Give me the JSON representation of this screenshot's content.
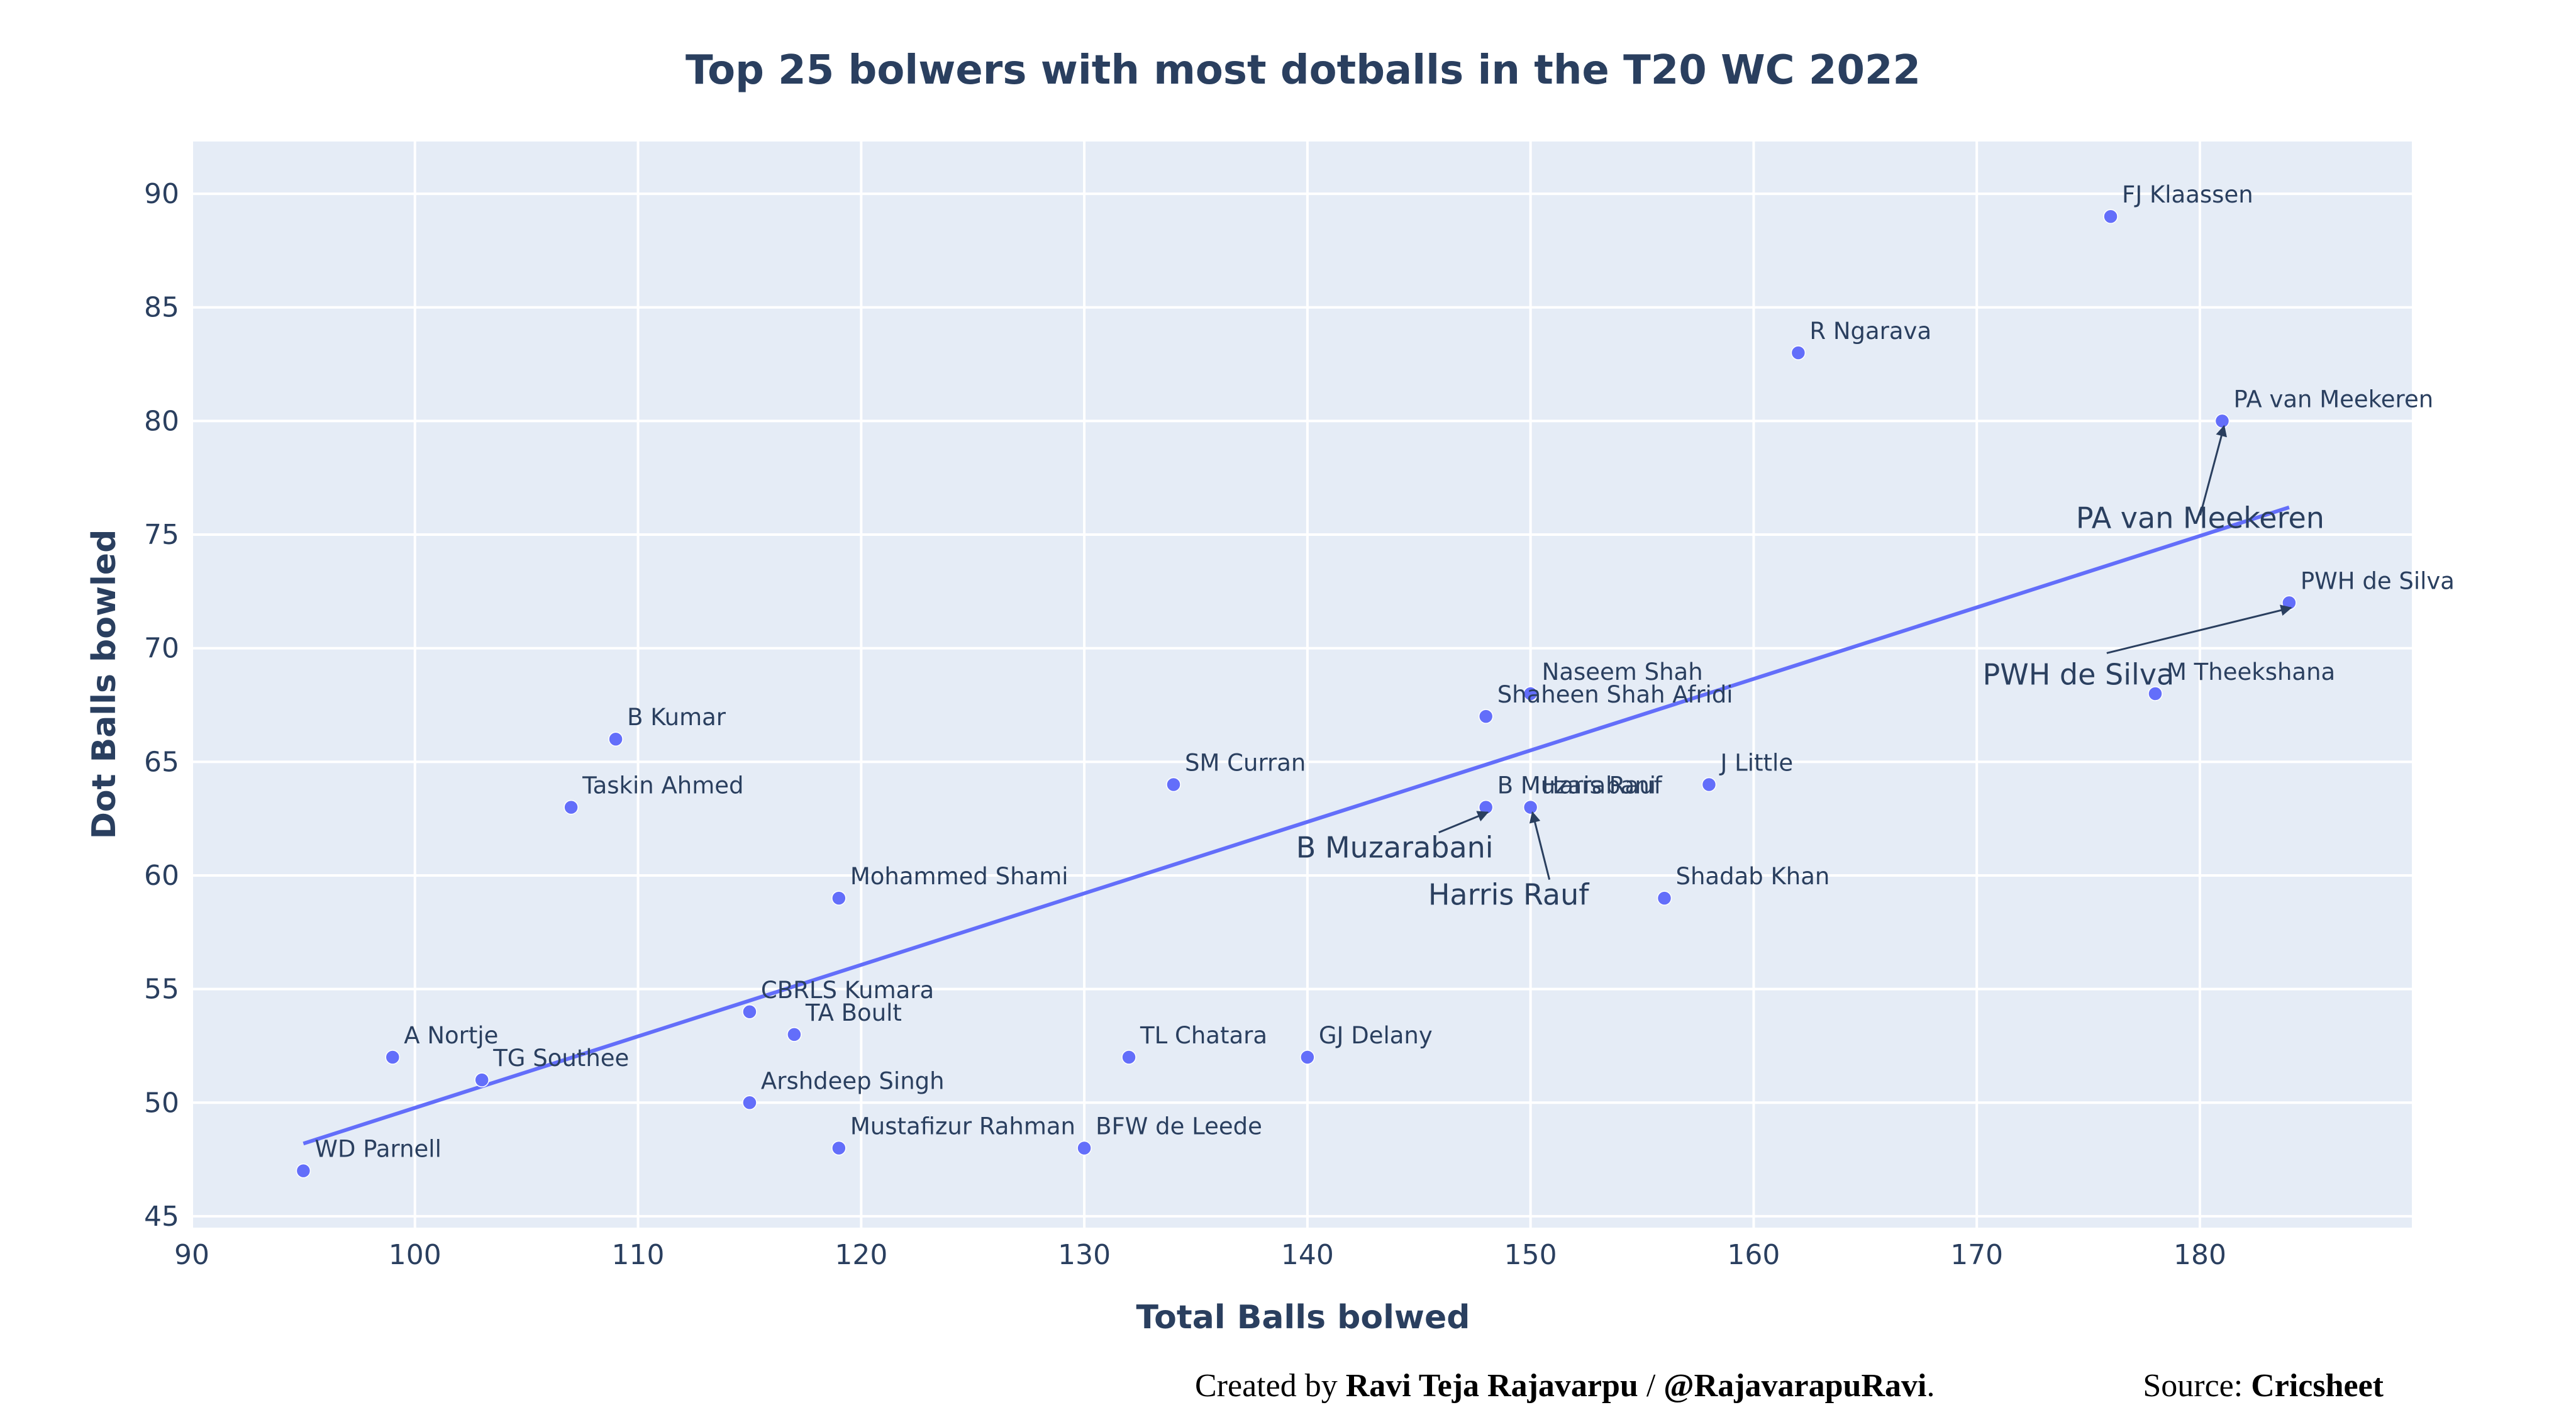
{
  "chart_data": {
    "type": "scatter",
    "title": "Top 25 bolwers with most dotballs in the T20 WC 2022",
    "xlabel": "Total Balls bolwed",
    "ylabel": "Dot Balls bowled",
    "xlim": [
      90,
      189.5
    ],
    "ylim": [
      44.5,
      92.3
    ],
    "x_ticks": [
      90,
      100,
      110,
      120,
      130,
      140,
      150,
      160,
      170,
      180
    ],
    "y_ticks": [
      45,
      50,
      55,
      60,
      65,
      70,
      75,
      80,
      85,
      90
    ],
    "grid": true,
    "marker_color": "#636efa",
    "plot_bg": "#e5ecf6",
    "trendline": {
      "x": [
        95,
        184
      ],
      "y": [
        48.2,
        76.2
      ],
      "color": "#636efa"
    },
    "points": [
      {
        "name": "FJ Klaassen",
        "x": 176,
        "y": 89
      },
      {
        "name": "R Ngarava",
        "x": 162,
        "y": 83
      },
      {
        "name": "PA van Meekeren",
        "x": 181,
        "y": 80
      },
      {
        "name": "PWH de Silva",
        "x": 184,
        "y": 72
      },
      {
        "name": "M Theekshana",
        "x": 178,
        "y": 68
      },
      {
        "name": "Naseem Shah",
        "x": 150,
        "y": 68
      },
      {
        "name": "Shaheen Shah Afridi",
        "x": 148,
        "y": 67
      },
      {
        "name": "B Kumar",
        "x": 109,
        "y": 66
      },
      {
        "name": "SM Curran",
        "x": 134,
        "y": 64
      },
      {
        "name": "J Little",
        "x": 158,
        "y": 64
      },
      {
        "name": "Taskin Ahmed",
        "x": 107,
        "y": 63
      },
      {
        "name": "B Muzarabani",
        "x": 148,
        "y": 63
      },
      {
        "name": "Haris Rauf",
        "x": 150,
        "y": 63
      },
      {
        "name": "Mohammed Shami",
        "x": 119,
        "y": 59
      },
      {
        "name": "Shadab Khan",
        "x": 156,
        "y": 59
      },
      {
        "name": "CBRLS Kumara",
        "x": 115,
        "y": 54
      },
      {
        "name": "TA Boult",
        "x": 117,
        "y": 53
      },
      {
        "name": "A Nortje",
        "x": 99,
        "y": 52
      },
      {
        "name": "TL Chatara",
        "x": 132,
        "y": 52
      },
      {
        "name": "GJ Delany",
        "x": 140,
        "y": 52
      },
      {
        "name": "TG Southee",
        "x": 103,
        "y": 51
      },
      {
        "name": "Arshdeep Singh",
        "x": 115,
        "y": 50
      },
      {
        "name": "Mustafizur Rahman",
        "x": 119,
        "y": 48
      },
      {
        "name": "BFW de Leede",
        "x": 130,
        "y": 48
      },
      {
        "name": "WD Parnell",
        "x": 95,
        "y": 47
      }
    ],
    "annotations": [
      {
        "text": "PA van Meekeren",
        "x": 181,
        "y": 80
      },
      {
        "text": "PWH de Silva",
        "x": 184,
        "y": 72
      },
      {
        "text": "B Muzarabani",
        "x": 148,
        "y": 63
      },
      {
        "text": "Harris Rauf",
        "x": 150,
        "y": 63
      }
    ]
  },
  "credit": {
    "prefix": "Created by ",
    "author": "Ravi Teja Rajavarpu",
    "separator": " / ",
    "handle": "@RajavarapuRavi",
    "suffix": ".",
    "source_prefix": "Source: ",
    "source": "Cricsheet"
  }
}
